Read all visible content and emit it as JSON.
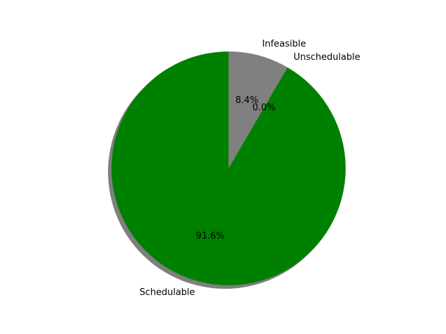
{
  "chart_data": {
    "type": "pie",
    "title": "",
    "categories": [
      "Infeasible",
      "Unschedulable",
      "Schedulable"
    ],
    "values": [
      8.4,
      0.0,
      91.6
    ],
    "percent_labels": [
      "8.4%",
      "0.0%",
      "91.6%"
    ],
    "colors": [
      "#808080",
      "#ff7f0e",
      "#008000"
    ],
    "start_angle_deg": 90,
    "direction": "counterclockwise_from_top_reversed_order",
    "shadow": true,
    "legend": "none"
  }
}
